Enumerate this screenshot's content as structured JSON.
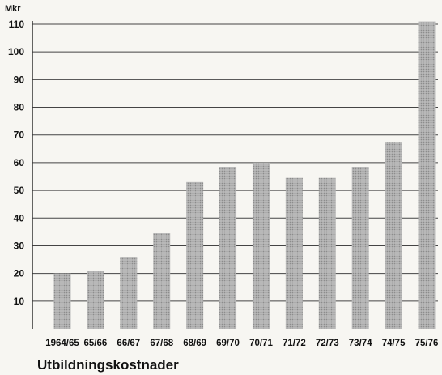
{
  "chart_data": {
    "type": "bar",
    "title": "Utbildningskostnader",
    "ylabel": "Mkr",
    "xlabel": "",
    "categories": [
      "1964/65",
      "65/66",
      "66/67",
      "67/68",
      "68/69",
      "69/70",
      "70/71",
      "71/72",
      "72/73",
      "73/74",
      "74/75",
      "75/76"
    ],
    "values": [
      20,
      21,
      26,
      34.5,
      53,
      58.5,
      60,
      54.5,
      54.5,
      58.5,
      67.5,
      111
    ],
    "ylim": [
      0,
      110
    ],
    "yticks": [
      10,
      20,
      30,
      40,
      50,
      60,
      70,
      80,
      90,
      100,
      110
    ],
    "grid": true,
    "legend": "none",
    "bar_color": "#a9a9a9",
    "grid_color": "#444444"
  }
}
